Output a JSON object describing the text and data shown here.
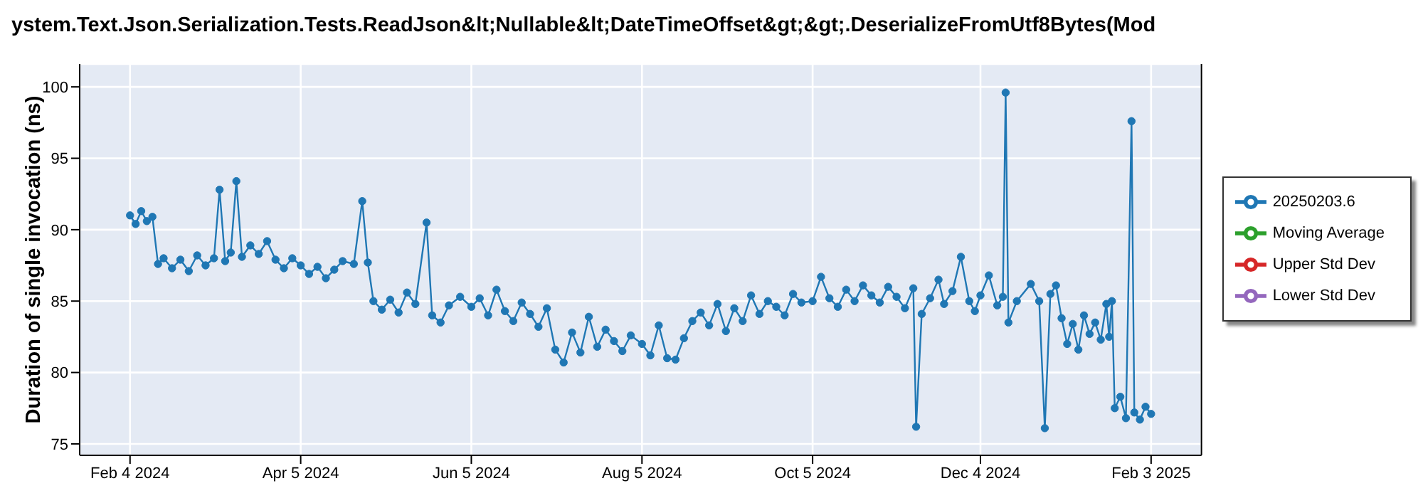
{
  "chart_data": {
    "type": "line",
    "title": "ystem.Text.Json.Serialization.Tests.ReadJson&lt;Nullable&lt;DateTimeOffset&gt;&gt;.DeserializeFromUtf8Bytes(Mod",
    "ylabel": "Duration of single invocation (ns)",
    "xlim": [
      "2024-01-17",
      "2025-02-21"
    ],
    "ylim": [
      74.2,
      101.6
    ],
    "xticks": [
      {
        "value": "2024-02-04",
        "label": "Feb 4 2024"
      },
      {
        "value": "2024-04-05",
        "label": "Apr 5 2024"
      },
      {
        "value": "2024-06-05",
        "label": "Jun 5 2024"
      },
      {
        "value": "2024-08-05",
        "label": "Aug 5 2024"
      },
      {
        "value": "2024-10-05",
        "label": "Oct 5 2024"
      },
      {
        "value": "2024-12-04",
        "label": "Dec 4 2024"
      },
      {
        "value": "2025-02-03",
        "label": "Feb 3 2025"
      }
    ],
    "yticks": [
      75,
      80,
      85,
      90,
      95,
      100
    ],
    "grid": true,
    "legend": "right",
    "marker": "circle",
    "line_style": "solid",
    "series": [
      {
        "name": "20250203.6",
        "color": "#1f77b4",
        "x": [
          "2024-02-04",
          "2024-02-06",
          "2024-02-08",
          "2024-02-10",
          "2024-02-12",
          "2024-02-14",
          "2024-02-16",
          "2024-02-19",
          "2024-02-22",
          "2024-02-25",
          "2024-02-28",
          "2024-03-02",
          "2024-03-05",
          "2024-03-07",
          "2024-03-09",
          "2024-03-11",
          "2024-03-13",
          "2024-03-15",
          "2024-03-18",
          "2024-03-21",
          "2024-03-24",
          "2024-03-27",
          "2024-03-30",
          "2024-04-02",
          "2024-04-05",
          "2024-04-08",
          "2024-04-11",
          "2024-04-14",
          "2024-04-17",
          "2024-04-20",
          "2024-04-24",
          "2024-04-27",
          "2024-04-29",
          "2024-05-01",
          "2024-05-04",
          "2024-05-07",
          "2024-05-10",
          "2024-05-13",
          "2024-05-16",
          "2024-05-20",
          "2024-05-22",
          "2024-05-25",
          "2024-05-28",
          "2024-06-01",
          "2024-06-05",
          "2024-06-08",
          "2024-06-11",
          "2024-06-14",
          "2024-06-17",
          "2024-06-20",
          "2024-06-23",
          "2024-06-26",
          "2024-06-29",
          "2024-07-02",
          "2024-07-05",
          "2024-07-08",
          "2024-07-11",
          "2024-07-14",
          "2024-07-17",
          "2024-07-20",
          "2024-07-23",
          "2024-07-26",
          "2024-07-29",
          "2024-08-01",
          "2024-08-05",
          "2024-08-08",
          "2024-08-11",
          "2024-08-14",
          "2024-08-17",
          "2024-08-20",
          "2024-08-23",
          "2024-08-26",
          "2024-08-29",
          "2024-09-01",
          "2024-09-04",
          "2024-09-07",
          "2024-09-10",
          "2024-09-13",
          "2024-09-16",
          "2024-09-19",
          "2024-09-22",
          "2024-09-25",
          "2024-09-28",
          "2024-10-01",
          "2024-10-05",
          "2024-10-08",
          "2024-10-11",
          "2024-10-14",
          "2024-10-17",
          "2024-10-20",
          "2024-10-23",
          "2024-10-26",
          "2024-10-29",
          "2024-11-01",
          "2024-11-04",
          "2024-11-07",
          "2024-11-10",
          "2024-11-11",
          "2024-11-13",
          "2024-11-16",
          "2024-11-19",
          "2024-11-21",
          "2024-11-24",
          "2024-11-27",
          "2024-11-30",
          "2024-12-02",
          "2024-12-04",
          "2024-12-07",
          "2024-12-10",
          "2024-12-12",
          "2024-12-13",
          "2024-12-14",
          "2024-12-17",
          "2024-12-22",
          "2024-12-25",
          "2024-12-27",
          "2024-12-29",
          "2024-12-31",
          "2025-01-02",
          "2025-01-04",
          "2025-01-06",
          "2025-01-08",
          "2025-01-10",
          "2025-01-12",
          "2025-01-14",
          "2025-01-16",
          "2025-01-18",
          "2025-01-19",
          "2025-01-20",
          "2025-01-21",
          "2025-01-23",
          "2025-01-25",
          "2025-01-27",
          "2025-01-28",
          "2025-01-30",
          "2025-02-01",
          "2025-02-03"
        ],
        "values": [
          91.0,
          90.4,
          91.3,
          90.6,
          90.9,
          87.6,
          88.0,
          87.3,
          87.9,
          87.1,
          88.2,
          87.5,
          88.0,
          92.8,
          87.8,
          88.4,
          93.4,
          88.1,
          88.9,
          88.3,
          89.2,
          87.9,
          87.3,
          88.0,
          87.5,
          86.9,
          87.4,
          86.6,
          87.2,
          87.8,
          87.6,
          92.0,
          87.7,
          85.0,
          84.4,
          85.1,
          84.2,
          85.6,
          84.8,
          90.5,
          84.0,
          83.5,
          84.7,
          85.3,
          84.6,
          85.2,
          84.0,
          85.8,
          84.3,
          83.6,
          84.9,
          84.1,
          83.2,
          84.5,
          81.6,
          80.7,
          82.8,
          81.4,
          83.9,
          81.8,
          83.0,
          82.2,
          81.5,
          82.6,
          82.0,
          81.2,
          83.3,
          81.0,
          80.9,
          82.4,
          83.6,
          84.2,
          83.3,
          84.8,
          82.9,
          84.5,
          83.6,
          85.4,
          84.1,
          85.0,
          84.6,
          84.0,
          85.5,
          84.9,
          85.0,
          86.7,
          85.2,
          84.6,
          85.8,
          85.0,
          86.1,
          85.4,
          84.9,
          86.0,
          85.3,
          84.5,
          85.9,
          76.2,
          84.1,
          85.2,
          86.5,
          84.8,
          85.7,
          88.1,
          85.0,
          84.3,
          85.4,
          86.8,
          84.7,
          85.3,
          99.6,
          83.5,
          85.0,
          86.2,
          85.0,
          76.1,
          85.5,
          86.1,
          83.8,
          82.0,
          83.4,
          81.6,
          84.0,
          82.7,
          83.5,
          82.3,
          84.8,
          82.5,
          85.0,
          77.5,
          78.3,
          76.8,
          97.6,
          77.2,
          76.7,
          77.6,
          77.1
        ]
      },
      {
        "name": "Moving Average",
        "color": "#2ca02c"
      },
      {
        "name": "Upper Std Dev",
        "color": "#d62728"
      },
      {
        "name": "Lower Std Dev",
        "color": "#9467bd"
      }
    ]
  }
}
